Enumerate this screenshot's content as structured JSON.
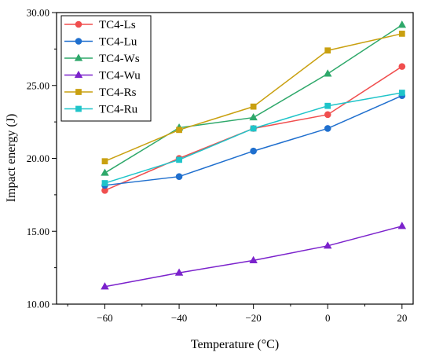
{
  "chart_data": {
    "type": "line",
    "xlabel": "Temperature (°C)",
    "ylabel": "Impact energy (J)",
    "x": [
      -60,
      -40,
      -20,
      0,
      20
    ],
    "xlim": [
      -73,
      23
    ],
    "ylim": [
      10,
      30
    ],
    "xticks": [
      -60,
      -40,
      -20,
      0,
      20
    ],
    "xtick_labels": [
      "−60",
      "−40",
      "−20",
      "0",
      "20"
    ],
    "yticks": [
      10,
      15,
      20,
      25,
      30
    ],
    "ytick_labels": [
      "10.00",
      "15.00",
      "20.00",
      "25.00",
      "30.00"
    ],
    "grid": false,
    "legend_position": "top-left",
    "series": [
      {
        "name": "TC4-Ls",
        "values": [
          17.8,
          20.0,
          22.05,
          23.0,
          26.3
        ],
        "color": "#f04e4e",
        "marker": "circle"
      },
      {
        "name": "TC4-Lu",
        "values": [
          18.15,
          18.75,
          20.5,
          22.05,
          24.3
        ],
        "color": "#1f6fce",
        "marker": "circle"
      },
      {
        "name": "TC4-Ws",
        "values": [
          19.0,
          22.1,
          22.8,
          25.8,
          29.15
        ],
        "color": "#2ea86a",
        "marker": "triangle"
      },
      {
        "name": "TC4-Wu",
        "values": [
          11.2,
          12.15,
          13.0,
          14.0,
          15.35
        ],
        "color": "#7b22cc",
        "marker": "triangle"
      },
      {
        "name": "TC4-Rs",
        "values": [
          19.8,
          21.95,
          23.55,
          27.4,
          28.55
        ],
        "color": "#c9a010",
        "marker": "square"
      },
      {
        "name": "TC4-Ru",
        "values": [
          18.3,
          19.9,
          22.05,
          23.6,
          24.5
        ],
        "color": "#1fc4c9",
        "marker": "square"
      }
    ]
  }
}
